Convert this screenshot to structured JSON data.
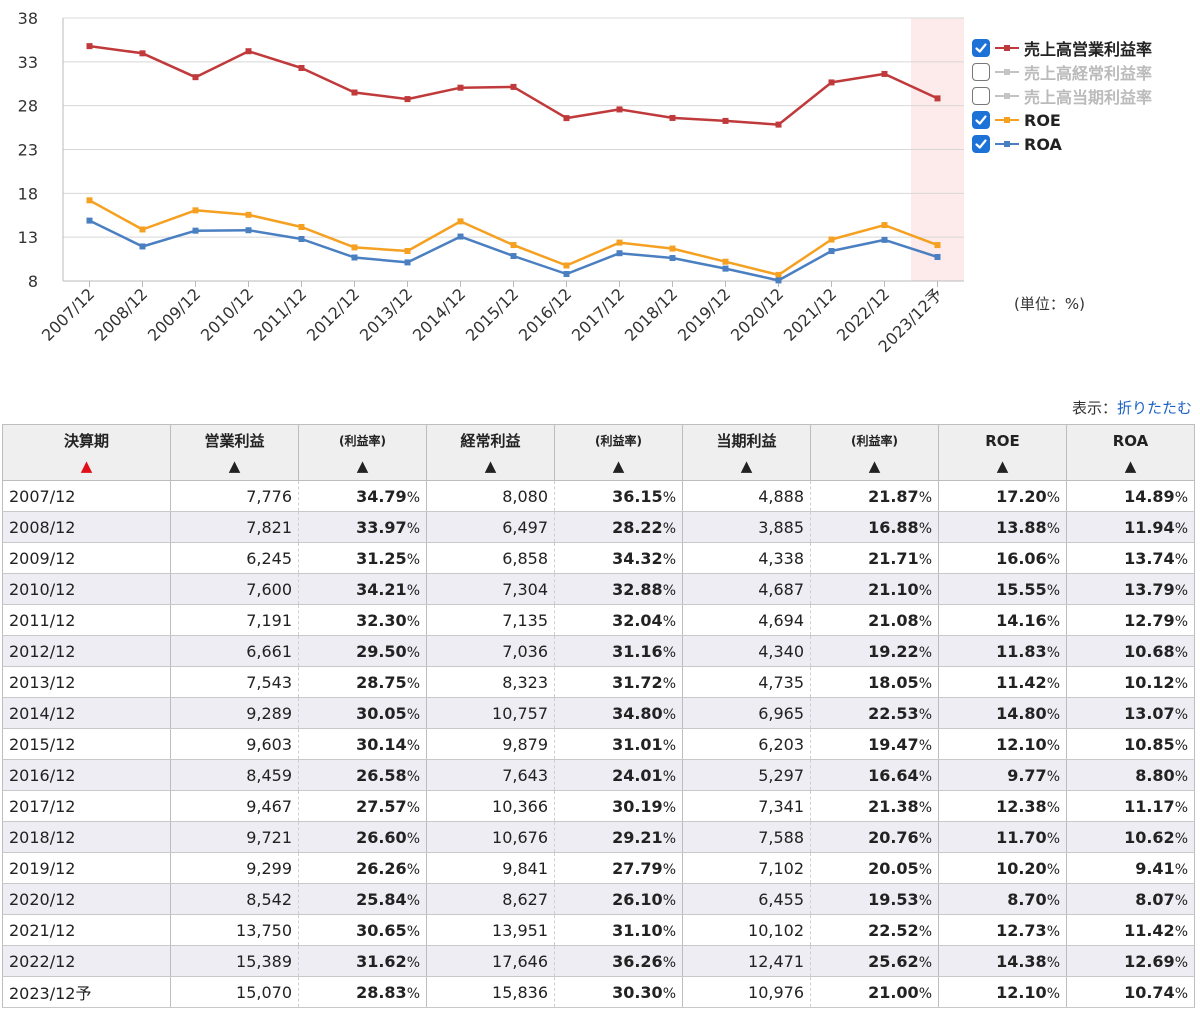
{
  "chart_data": {
    "type": "line",
    "categories": [
      "2007/12",
      "2008/12",
      "2009/12",
      "2010/12",
      "2011/12",
      "2012/12",
      "2013/12",
      "2014/12",
      "2015/12",
      "2016/12",
      "2017/12",
      "2018/12",
      "2019/12",
      "2020/12",
      "2021/12",
      "2022/12",
      "2023/12予"
    ],
    "y_ticks": [
      "38",
      "33",
      "28",
      "23",
      "18",
      "13",
      "8"
    ],
    "ylim": [
      8,
      38
    ],
    "grid": true,
    "forecast_highlight_index": 16,
    "forecast_color": "#fdeaea",
    "series": [
      {
        "name": "売上高営業利益率",
        "color": "#c0393b",
        "visible": true,
        "values": [
          34.79,
          33.97,
          31.25,
          34.21,
          32.3,
          29.5,
          28.75,
          30.05,
          30.14,
          26.58,
          27.57,
          26.6,
          26.26,
          25.84,
          30.65,
          31.62,
          28.83
        ]
      },
      {
        "name": "売上高経常利益率",
        "color": "#bdbdbd",
        "visible": false,
        "values": [
          36.15,
          28.22,
          34.32,
          32.88,
          32.04,
          31.16,
          31.72,
          34.8,
          31.01,
          24.01,
          30.19,
          29.21,
          27.79,
          26.1,
          31.1,
          36.26,
          30.3
        ]
      },
      {
        "name": "売上高当期利益率",
        "color": "#bdbdbd",
        "visible": false,
        "values": [
          21.87,
          16.88,
          21.71,
          21.1,
          21.08,
          19.22,
          18.05,
          22.53,
          19.47,
          16.64,
          21.38,
          20.76,
          20.05,
          19.53,
          22.52,
          25.62,
          21.0
        ]
      },
      {
        "name": "ROE",
        "color": "#f5a020",
        "visible": true,
        "values": [
          17.2,
          13.88,
          16.06,
          15.55,
          14.16,
          11.83,
          11.42,
          14.8,
          12.1,
          9.77,
          12.38,
          11.7,
          10.2,
          8.7,
          12.73,
          14.38,
          12.1
        ]
      },
      {
        "name": "ROA",
        "color": "#4a7fc1",
        "visible": true,
        "values": [
          14.89,
          11.94,
          13.74,
          13.79,
          12.79,
          10.68,
          10.12,
          13.07,
          10.85,
          8.8,
          11.17,
          10.62,
          9.41,
          8.07,
          11.42,
          12.69,
          10.74
        ]
      }
    ]
  },
  "legend": [
    {
      "label": "売上高営業利益率",
      "checked": true
    },
    {
      "label": "売上高経常利益率",
      "checked": false
    },
    {
      "label": "売上高当期利益率",
      "checked": false
    },
    {
      "label": "ROE",
      "checked": true
    },
    {
      "label": "ROA",
      "checked": true
    }
  ],
  "unit_label": "(単位：%)",
  "view": {
    "label": "表示：",
    "link": "折りたたむ"
  },
  "table": {
    "headers": {
      "period": "決算期",
      "op_profit": "営業利益",
      "op_rate": "(利益率)",
      "ord_profit": "経常利益",
      "ord_rate": "(利益率)",
      "net_profit": "当期利益",
      "net_rate": "(利益率)",
      "roe": "ROE",
      "roa": "ROA"
    },
    "sort_arrow": "▲",
    "pct_suffix": "%",
    "rows": [
      {
        "period": "2007/12",
        "op": "7,776",
        "op_rate": "34.79",
        "ord": "8,080",
        "ord_rate": "36.15",
        "net": "4,888",
        "net_rate": "21.87",
        "roe": "17.20",
        "roa": "14.89"
      },
      {
        "period": "2008/12",
        "op": "7,821",
        "op_rate": "33.97",
        "ord": "6,497",
        "ord_rate": "28.22",
        "net": "3,885",
        "net_rate": "16.88",
        "roe": "13.88",
        "roa": "11.94"
      },
      {
        "period": "2009/12",
        "op": "6,245",
        "op_rate": "31.25",
        "ord": "6,858",
        "ord_rate": "34.32",
        "net": "4,338",
        "net_rate": "21.71",
        "roe": "16.06",
        "roa": "13.74"
      },
      {
        "period": "2010/12",
        "op": "7,600",
        "op_rate": "34.21",
        "ord": "7,304",
        "ord_rate": "32.88",
        "net": "4,687",
        "net_rate": "21.10",
        "roe": "15.55",
        "roa": "13.79"
      },
      {
        "period": "2011/12",
        "op": "7,191",
        "op_rate": "32.30",
        "ord": "7,135",
        "ord_rate": "32.04",
        "net": "4,694",
        "net_rate": "21.08",
        "roe": "14.16",
        "roa": "12.79"
      },
      {
        "period": "2012/12",
        "op": "6,661",
        "op_rate": "29.50",
        "ord": "7,036",
        "ord_rate": "31.16",
        "net": "4,340",
        "net_rate": "19.22",
        "roe": "11.83",
        "roa": "10.68"
      },
      {
        "period": "2013/12",
        "op": "7,543",
        "op_rate": "28.75",
        "ord": "8,323",
        "ord_rate": "31.72",
        "net": "4,735",
        "net_rate": "18.05",
        "roe": "11.42",
        "roa": "10.12"
      },
      {
        "period": "2014/12",
        "op": "9,289",
        "op_rate": "30.05",
        "ord": "10,757",
        "ord_rate": "34.80",
        "net": "6,965",
        "net_rate": "22.53",
        "roe": "14.80",
        "roa": "13.07"
      },
      {
        "period": "2015/12",
        "op": "9,603",
        "op_rate": "30.14",
        "ord": "9,879",
        "ord_rate": "31.01",
        "net": "6,203",
        "net_rate": "19.47",
        "roe": "12.10",
        "roa": "10.85"
      },
      {
        "period": "2016/12",
        "op": "8,459",
        "op_rate": "26.58",
        "ord": "7,643",
        "ord_rate": "24.01",
        "net": "5,297",
        "net_rate": "16.64",
        "roe": "9.77",
        "roa": "8.80"
      },
      {
        "period": "2017/12",
        "op": "9,467",
        "op_rate": "27.57",
        "ord": "10,366",
        "ord_rate": "30.19",
        "net": "7,341",
        "net_rate": "21.38",
        "roe": "12.38",
        "roa": "11.17"
      },
      {
        "period": "2018/12",
        "op": "9,721",
        "op_rate": "26.60",
        "ord": "10,676",
        "ord_rate": "29.21",
        "net": "7,588",
        "net_rate": "20.76",
        "roe": "11.70",
        "roa": "10.62"
      },
      {
        "period": "2019/12",
        "op": "9,299",
        "op_rate": "26.26",
        "ord": "9,841",
        "ord_rate": "27.79",
        "net": "7,102",
        "net_rate": "20.05",
        "roe": "10.20",
        "roa": "9.41"
      },
      {
        "period": "2020/12",
        "op": "8,542",
        "op_rate": "25.84",
        "ord": "8,627",
        "ord_rate": "26.10",
        "net": "6,455",
        "net_rate": "19.53",
        "roe": "8.70",
        "roa": "8.07"
      },
      {
        "period": "2021/12",
        "op": "13,750",
        "op_rate": "30.65",
        "ord": "13,951",
        "ord_rate": "31.10",
        "net": "10,102",
        "net_rate": "22.52",
        "roe": "12.73",
        "roa": "11.42"
      },
      {
        "period": "2022/12",
        "op": "15,389",
        "op_rate": "31.62",
        "ord": "17,646",
        "ord_rate": "36.26",
        "net": "12,471",
        "net_rate": "25.62",
        "roe": "14.38",
        "roa": "12.69"
      },
      {
        "period": "2023/12予",
        "op": "15,070",
        "op_rate": "28.83",
        "ord": "15,836",
        "ord_rate": "30.30",
        "net": "10,976",
        "net_rate": "21.00",
        "roe": "12.10",
        "roa": "10.74"
      }
    ]
  }
}
